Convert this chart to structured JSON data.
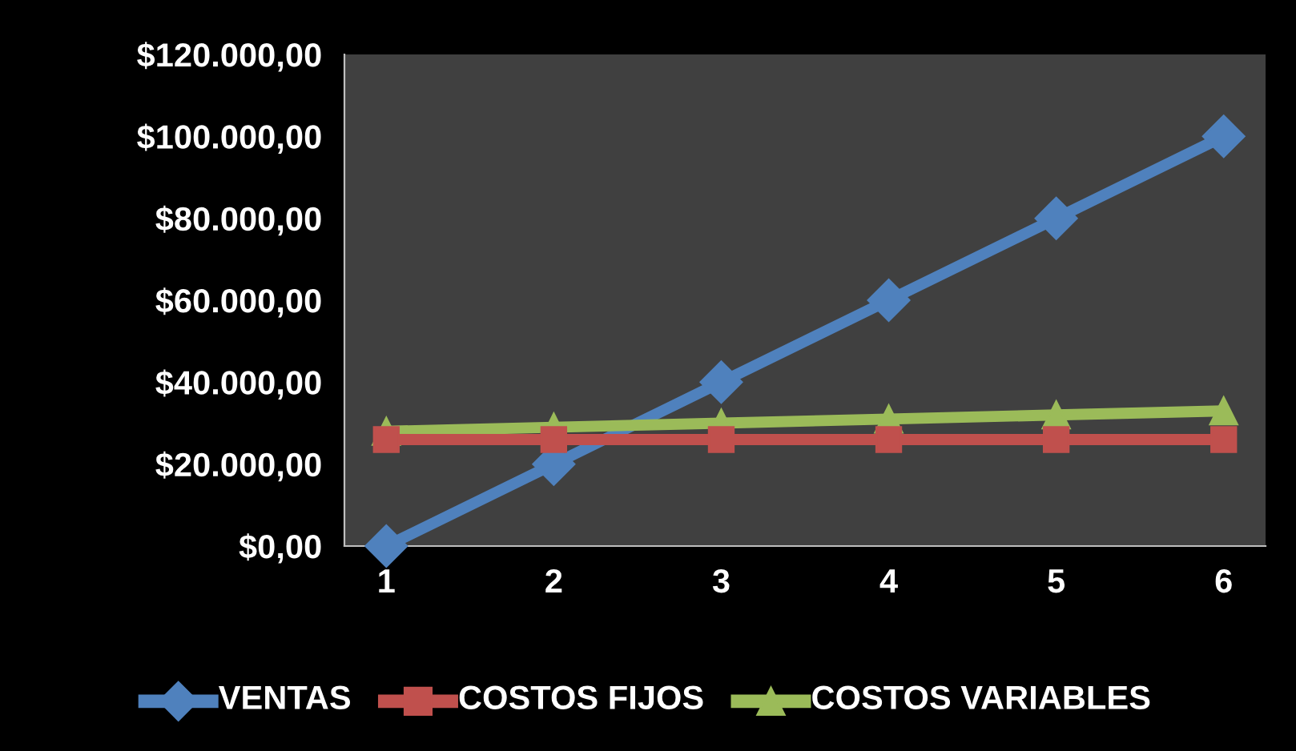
{
  "chart_data": {
    "type": "line",
    "x": [
      1,
      2,
      3,
      4,
      5,
      6
    ],
    "xlim": [
      0.75,
      6.25
    ],
    "xticks": [
      1,
      2,
      3,
      4,
      5,
      6
    ],
    "ylim": [
      0,
      120000
    ],
    "yticks": [
      {
        "value": 0,
        "label": "$0,00"
      },
      {
        "value": 20000,
        "label": "$20.000,00"
      },
      {
        "value": 40000,
        "label": "$40.000,00"
      },
      {
        "value": 60000,
        "label": "$60.000,00"
      },
      {
        "value": 80000,
        "label": "$80.000,00"
      },
      {
        "value": 100000,
        "label": "$100.000,00"
      },
      {
        "value": 120000,
        "label": "$120.000,00"
      }
    ],
    "grid": false,
    "legend": "bottom",
    "line_style": "solid",
    "series": [
      {
        "name": "VENTAS",
        "color": "#4f81bd",
        "marker": "diamond",
        "values": [
          0,
          20000,
          40000,
          60000,
          80000,
          100000
        ]
      },
      {
        "name": "COSTOS FIJOS",
        "color": "#c0504d",
        "marker": "square",
        "values": [
          26000,
          26000,
          26000,
          26000,
          26000,
          26000
        ]
      },
      {
        "name": "COSTOS VARIABLES",
        "color": "#9bbb59",
        "marker": "triangle",
        "values": [
          28000,
          29000,
          30000,
          31000,
          32000,
          33000
        ]
      }
    ]
  }
}
